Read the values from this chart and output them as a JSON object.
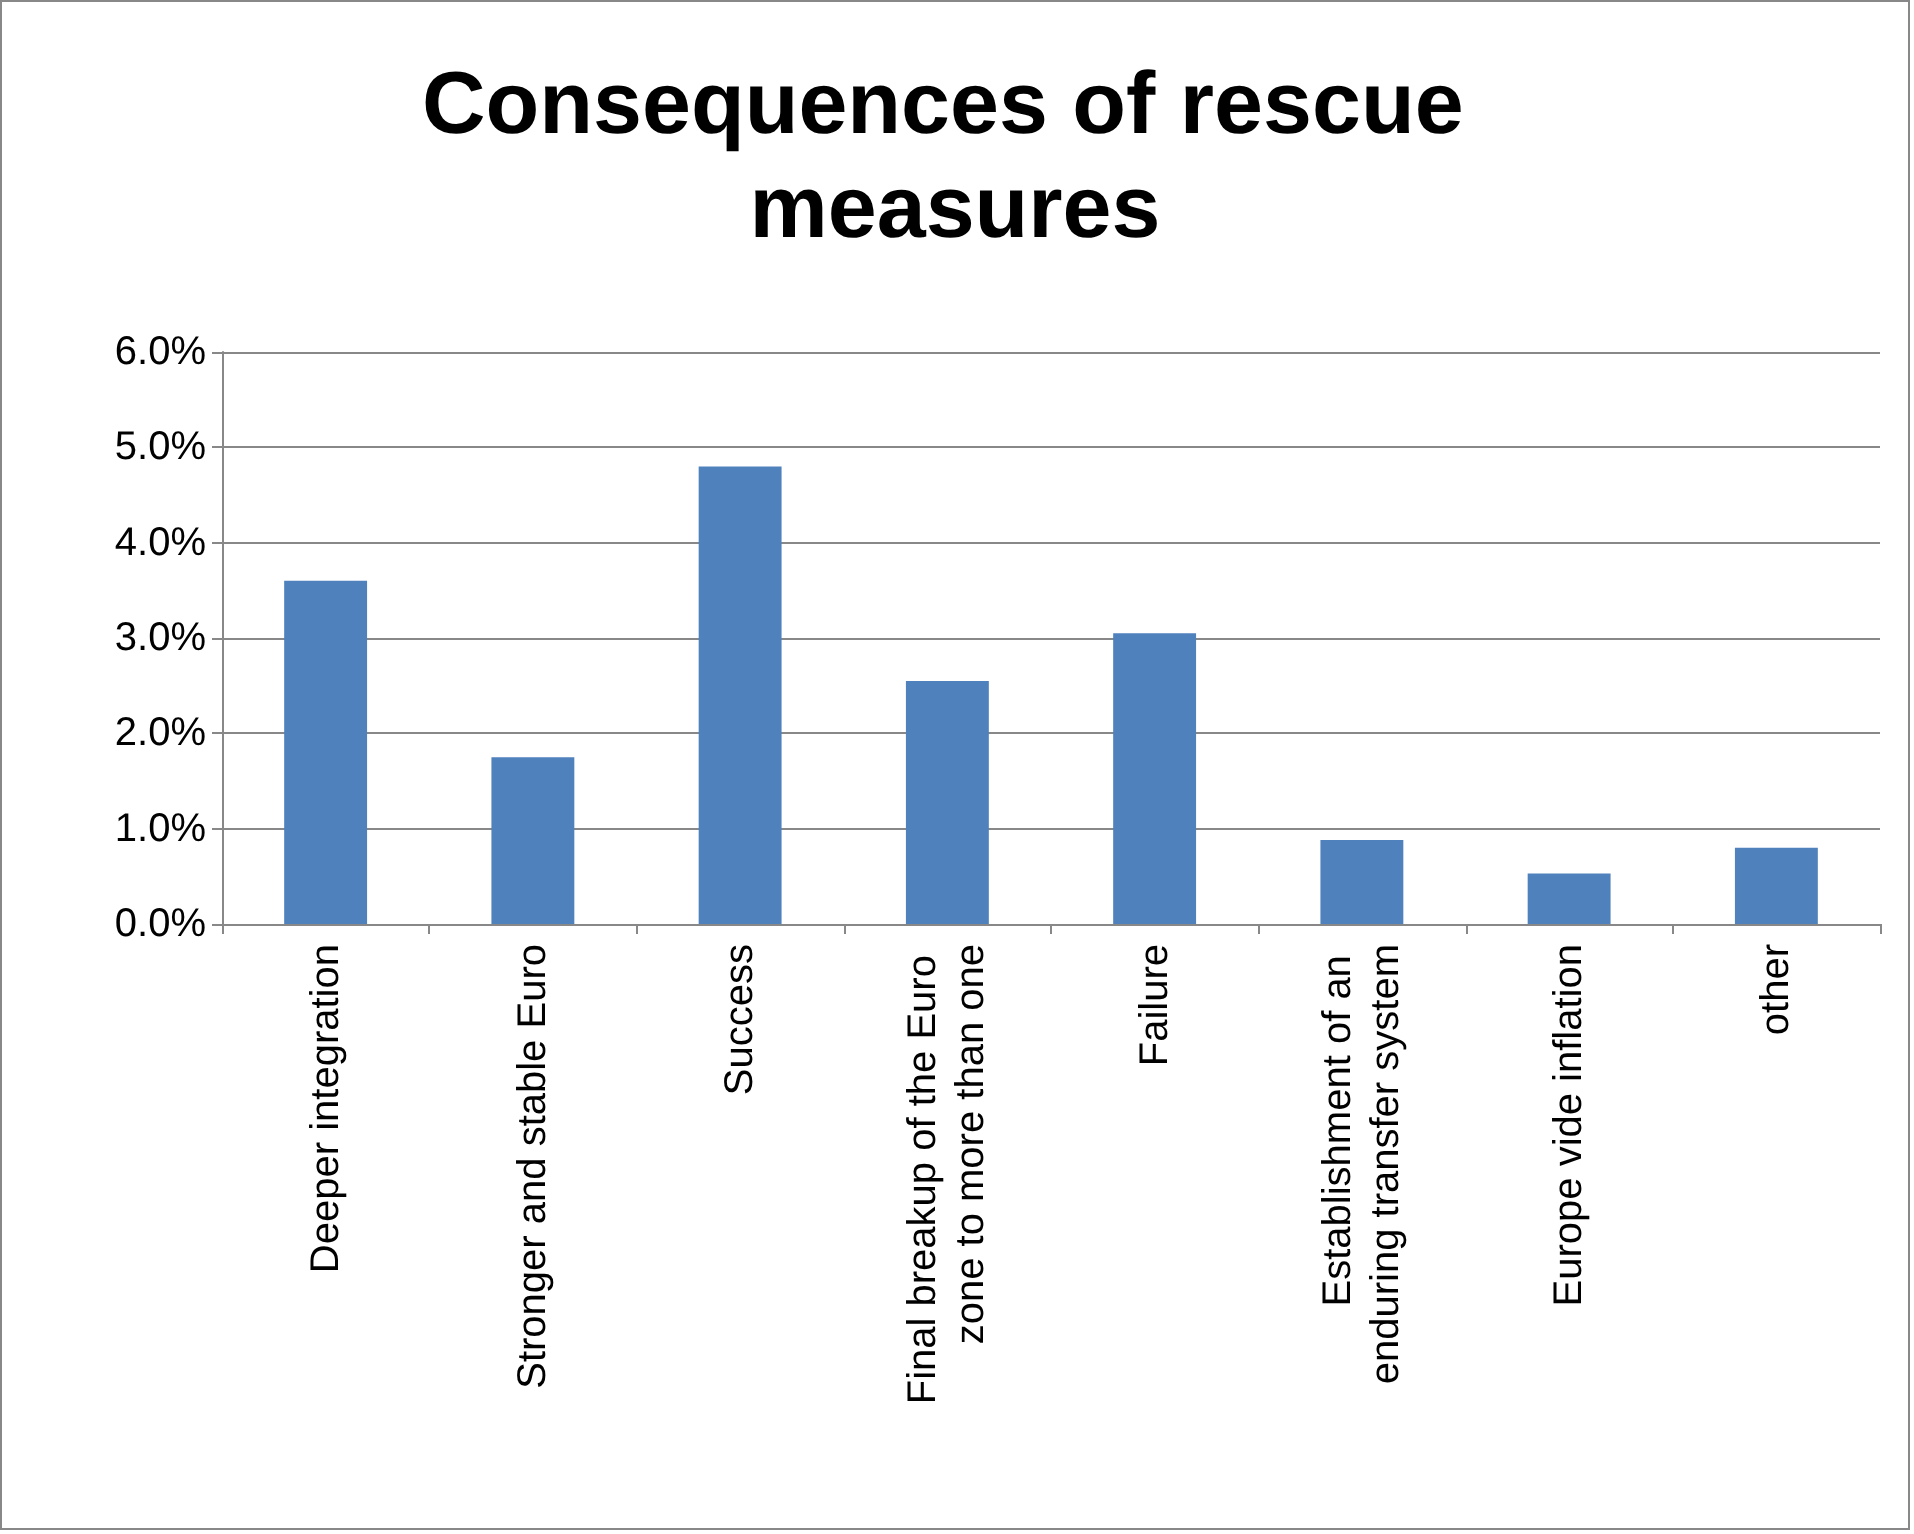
{
  "chart_data": {
    "type": "bar",
    "title": "Consequences of rescue measures",
    "categories": [
      "Deeper integration",
      "Stronger and stable Euro",
      "Success",
      "Final breakup of the Euro zone to more than one",
      "Failure",
      "Establishment of an enduring transfer system",
      "Europe vide inflation",
      "other"
    ],
    "values": [
      3.6,
      1.75,
      4.8,
      2.55,
      3.05,
      0.88,
      0.53,
      0.8
    ],
    "color": "#4f81bd",
    "ylim": [
      0,
      6
    ],
    "yticks": [
      {
        "value": 0,
        "label": "0.0%"
      },
      {
        "value": 1,
        "label": "1.0%"
      },
      {
        "value": 2,
        "label": "2.0%"
      },
      {
        "value": 3,
        "label": "3.0%"
      },
      {
        "value": 4,
        "label": "4.0%"
      },
      {
        "value": 5,
        "label": "5.0%"
      },
      {
        "value": 6,
        "label": "6.0%"
      }
    ],
    "grid": "y"
  }
}
